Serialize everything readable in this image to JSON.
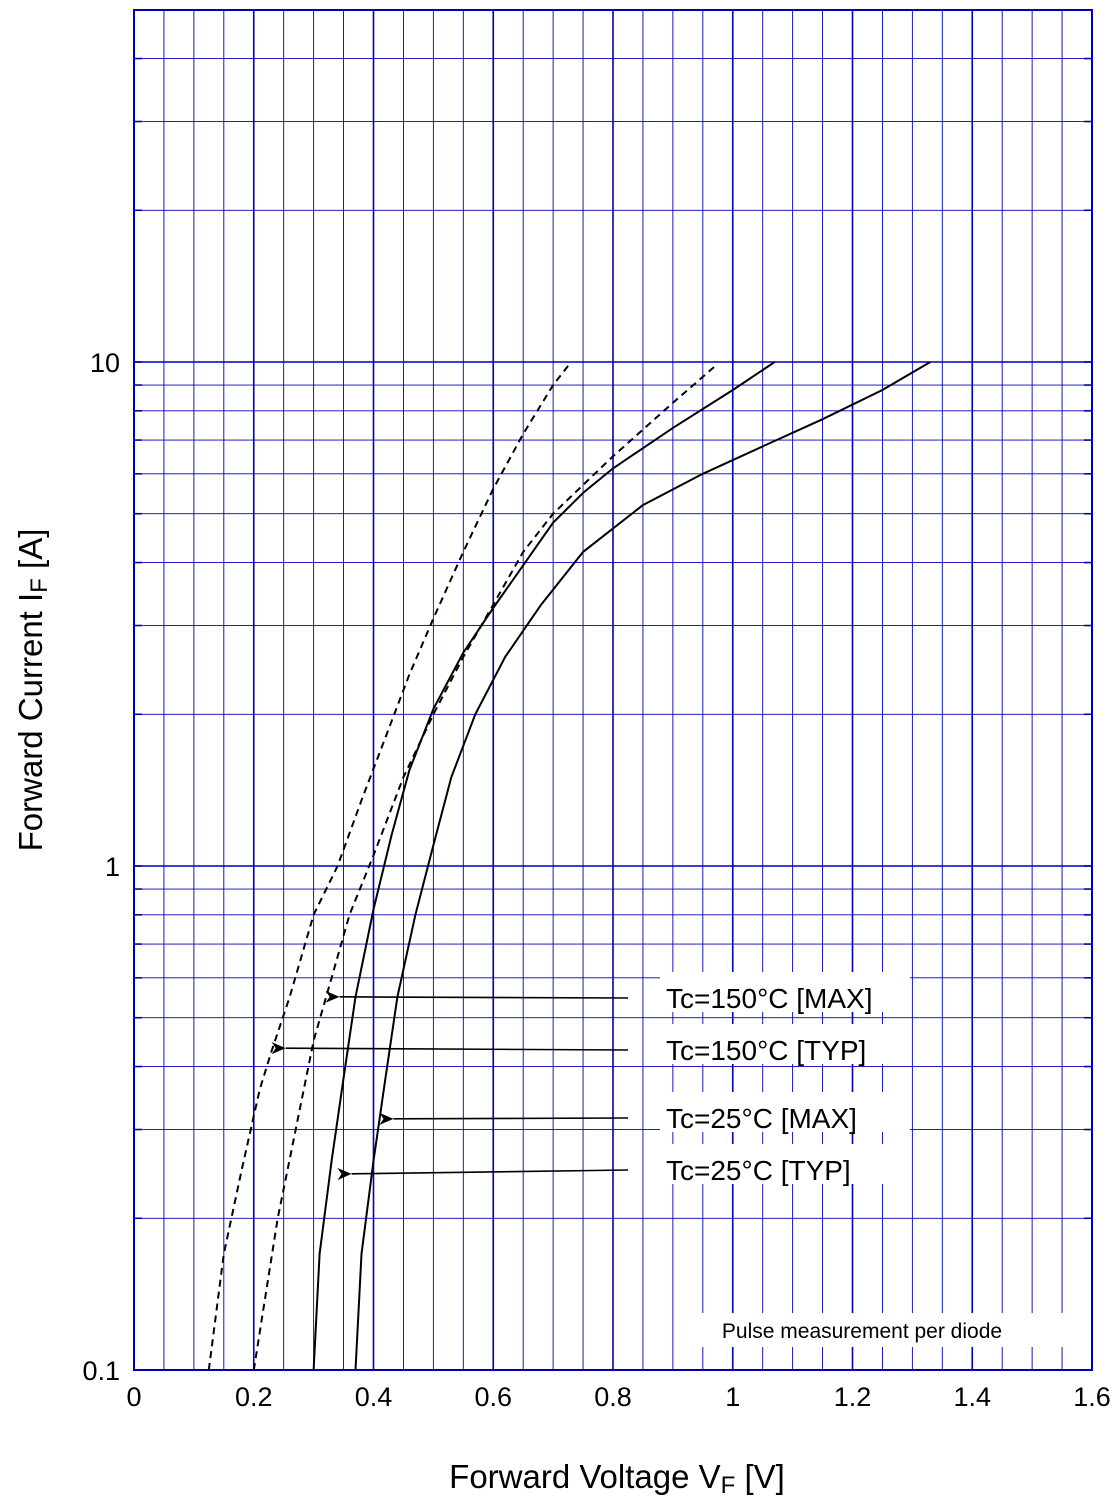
{
  "chart_data": {
    "type": "line",
    "xlabel": {
      "main": "Forward Voltage  V",
      "sub": "F",
      "unit": "  [V]"
    },
    "ylabel": {
      "main": "Forward Current  I",
      "sub": "F",
      "unit": "  [A]"
    },
    "xlim": [
      0,
      1.6
    ],
    "ylim": [
      0.1,
      50
    ],
    "yscale": "log",
    "grid": true,
    "x_ticks": [
      {
        "v": 0,
        "label": "0"
      },
      {
        "v": 0.2,
        "label": "0.2"
      },
      {
        "v": 0.4,
        "label": "0.4"
      },
      {
        "v": 0.6,
        "label": "0.6"
      },
      {
        "v": 0.8,
        "label": "0.8"
      },
      {
        "v": 1.0,
        "label": "1"
      },
      {
        "v": 1.2,
        "label": "1.2"
      },
      {
        "v": 1.4,
        "label": "1.4"
      },
      {
        "v": 1.6,
        "label": "1.6"
      }
    ],
    "y_ticks": [
      {
        "v": 0.1,
        "label": "0.1"
      },
      {
        "v": 1,
        "label": "1"
      },
      {
        "v": 10,
        "label": "10"
      }
    ],
    "note": "Pulse measurement per diode",
    "series": [
      {
        "name": "Tc=150°C [MAX]",
        "style": "dashed",
        "x": [
          0.2,
          0.24,
          0.27,
          0.3,
          0.33,
          0.36,
          0.4,
          0.45,
          0.5,
          0.55,
          0.6,
          0.65,
          0.7,
          0.8,
          0.9,
          0.97
        ],
        "y": [
          0.1,
          0.2,
          0.3,
          0.45,
          0.6,
          0.8,
          1.05,
          1.5,
          2.0,
          2.6,
          3.3,
          4.2,
          5.0,
          6.5,
          8.3,
          9.8
        ],
        "label_x": 0.32,
        "label_y": 0.55
      },
      {
        "name": "Tc=150°C [TYP]",
        "style": "dashed",
        "x": [
          0.125,
          0.15,
          0.18,
          0.21,
          0.23,
          0.26,
          0.3,
          0.34,
          0.38,
          0.42,
          0.46,
          0.5,
          0.55,
          0.6,
          0.65,
          0.7,
          0.73
        ],
        "y": [
          0.1,
          0.17,
          0.25,
          0.36,
          0.43,
          0.55,
          0.8,
          1.0,
          1.35,
          1.8,
          2.4,
          3.1,
          4.2,
          5.6,
          7.2,
          9.0,
          10.0
        ],
        "label_x": 0.23,
        "label_y": 0.435
      },
      {
        "name": "Tc=25°C [MAX]",
        "style": "solid",
        "x": [
          0.37,
          0.38,
          0.4,
          0.42,
          0.44,
          0.47,
          0.5,
          0.53,
          0.57,
          0.62,
          0.68,
          0.75,
          0.85,
          0.95,
          1.05,
          1.15,
          1.25,
          1.33
        ],
        "y": [
          0.1,
          0.17,
          0.26,
          0.38,
          0.55,
          0.8,
          1.1,
          1.5,
          2.0,
          2.6,
          3.3,
          4.2,
          5.2,
          6.0,
          6.8,
          7.7,
          8.8,
          10.0
        ],
        "label_x": 0.41,
        "label_y": 0.315
      },
      {
        "name": "Tc=25°C [TYP]",
        "style": "solid",
        "x": [
          0.3,
          0.31,
          0.33,
          0.35,
          0.37,
          0.4,
          0.43,
          0.46,
          0.5,
          0.55,
          0.6,
          0.65,
          0.7,
          0.75,
          0.8,
          0.9,
          1.0,
          1.07
        ],
        "y": [
          0.1,
          0.17,
          0.26,
          0.38,
          0.55,
          0.82,
          1.15,
          1.55,
          2.05,
          2.65,
          3.25,
          3.95,
          4.8,
          5.5,
          6.15,
          7.4,
          8.8,
          10.0
        ],
        "label_x": 0.34,
        "label_y": 0.245
      }
    ]
  }
}
